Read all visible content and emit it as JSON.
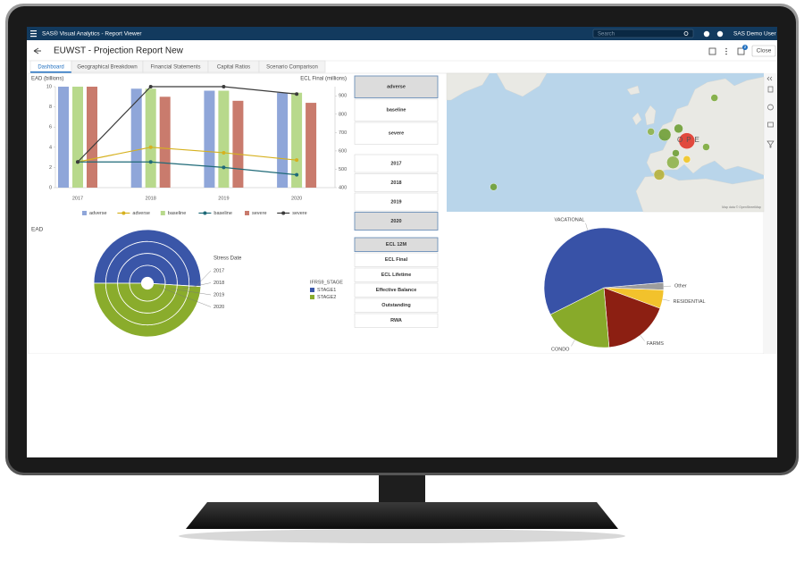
{
  "app": {
    "title": "SAS® Visual Analytics - Report Viewer",
    "search": "Search",
    "user": "SAS Demo User",
    "notifications": "2"
  },
  "report": {
    "title": "EUWST - Projection Report New",
    "close": "Close",
    "tabs": [
      "Dashboard",
      "Geographical Breakdown",
      "Financial Statements",
      "Capital Ratios",
      "Scenario Comparison"
    ],
    "active_tab": 0
  },
  "chart_data": [
    {
      "type": "bar_line",
      "y_label": "EAD (billions)",
      "y2_label": "ECL Final (millions)",
      "categories": [
        "2017",
        "2018",
        "2019",
        "2020"
      ],
      "ylim": [
        0,
        10
      ],
      "yticks": [
        0,
        2,
        4,
        6,
        8,
        10
      ],
      "y2lim": [
        400,
        950
      ],
      "y2ticks": [
        400,
        500,
        600,
        700,
        800,
        900
      ],
      "grid": false,
      "series": [
        {
          "name": "adverse",
          "kind": "bar",
          "color": "#8fa6d9",
          "values": [
            10,
            9.8,
            9.6,
            9.4
          ]
        },
        {
          "name": "adverse",
          "kind": "line",
          "axis": "y2",
          "color": "#d6b11f",
          "values": [
            540,
            620,
            590,
            550
          ]
        },
        {
          "name": "baseline",
          "kind": "bar",
          "color": "#b8d98c",
          "values": [
            10,
            9.8,
            9.6,
            9.4
          ]
        },
        {
          "name": "baseline",
          "kind": "line",
          "axis": "y2",
          "color": "#1f6a78",
          "values": [
            540,
            540,
            510,
            470
          ]
        },
        {
          "name": "severe",
          "kind": "bar",
          "color": "#c97b6d",
          "values": [
            10,
            9.0,
            8.6,
            8.4
          ]
        },
        {
          "name": "severe",
          "kind": "line",
          "axis": "y2",
          "color": "#3b3b3b",
          "values": [
            540,
            950,
            950,
            910
          ]
        }
      ]
    },
    {
      "type": "nested_pie",
      "title": "EAD",
      "category_label": "Stress Date",
      "legend_title": "IFRS9_STAGE",
      "categories": [
        "2017",
        "2018",
        "2019",
        "2020"
      ],
      "series": [
        {
          "name": "STAGE1",
          "color": "#3a56a8",
          "values": [
            51,
            51,
            51,
            51
          ]
        },
        {
          "name": "STAGE2",
          "color": "#8aac2c",
          "values": [
            49,
            49,
            49,
            49
          ]
        }
      ]
    },
    {
      "type": "pie",
      "categories": [
        "Other",
        "RESIDENTIAL",
        "FARMS",
        "CONDO",
        "VACATIONAL"
      ],
      "values": [
        2,
        5,
        18,
        19,
        56
      ],
      "colors": [
        "#9d9d9d",
        "#f2c22c",
        "#8c1f12",
        "#88aa2a",
        "#3852a7"
      ]
    }
  ],
  "controls": {
    "scenario": {
      "options": [
        "adverse",
        "baseline",
        "severe"
      ],
      "selected": 0
    },
    "year": {
      "options": [
        "2017",
        "2018",
        "2019",
        "2020"
      ],
      "selected": 3
    },
    "measure": {
      "options": [
        "ECL 12M",
        "ECL Final",
        "ECL Lifetime",
        "Effective Balance",
        "Outstanding",
        "RWA"
      ],
      "selected": 0
    }
  },
  "map": {
    "label": "OPE",
    "attribution": "Map data © OpenStreetMap",
    "markers": [
      {
        "lon": 22,
        "lat": 62,
        "size": 4,
        "color": "#7cab3c"
      },
      {
        "lon": 4,
        "lat": 50,
        "size": 7,
        "color": "#6f9e35"
      },
      {
        "lon": -1,
        "lat": 51,
        "size": 4,
        "color": "#8fb24a"
      },
      {
        "lon": 9,
        "lat": 52,
        "size": 5,
        "color": "#6f9e35"
      },
      {
        "lon": 12,
        "lat": 48,
        "size": 9,
        "color": "#e0392b"
      },
      {
        "lon": 19,
        "lat": 46,
        "size": 4,
        "color": "#7cab3c"
      },
      {
        "lon": 8,
        "lat": 44,
        "size": 4,
        "color": "#6f9e35"
      },
      {
        "lon": 12,
        "lat": 42,
        "size": 4,
        "color": "#f1c522"
      },
      {
        "lon": 7,
        "lat": 41,
        "size": 7,
        "color": "#8fb24a"
      },
      {
        "lon": 2,
        "lat": 37,
        "size": 6,
        "color": "#b7b13a"
      },
      {
        "lon": -58,
        "lat": 33,
        "size": 4,
        "color": "#6f9e35"
      }
    ]
  }
}
